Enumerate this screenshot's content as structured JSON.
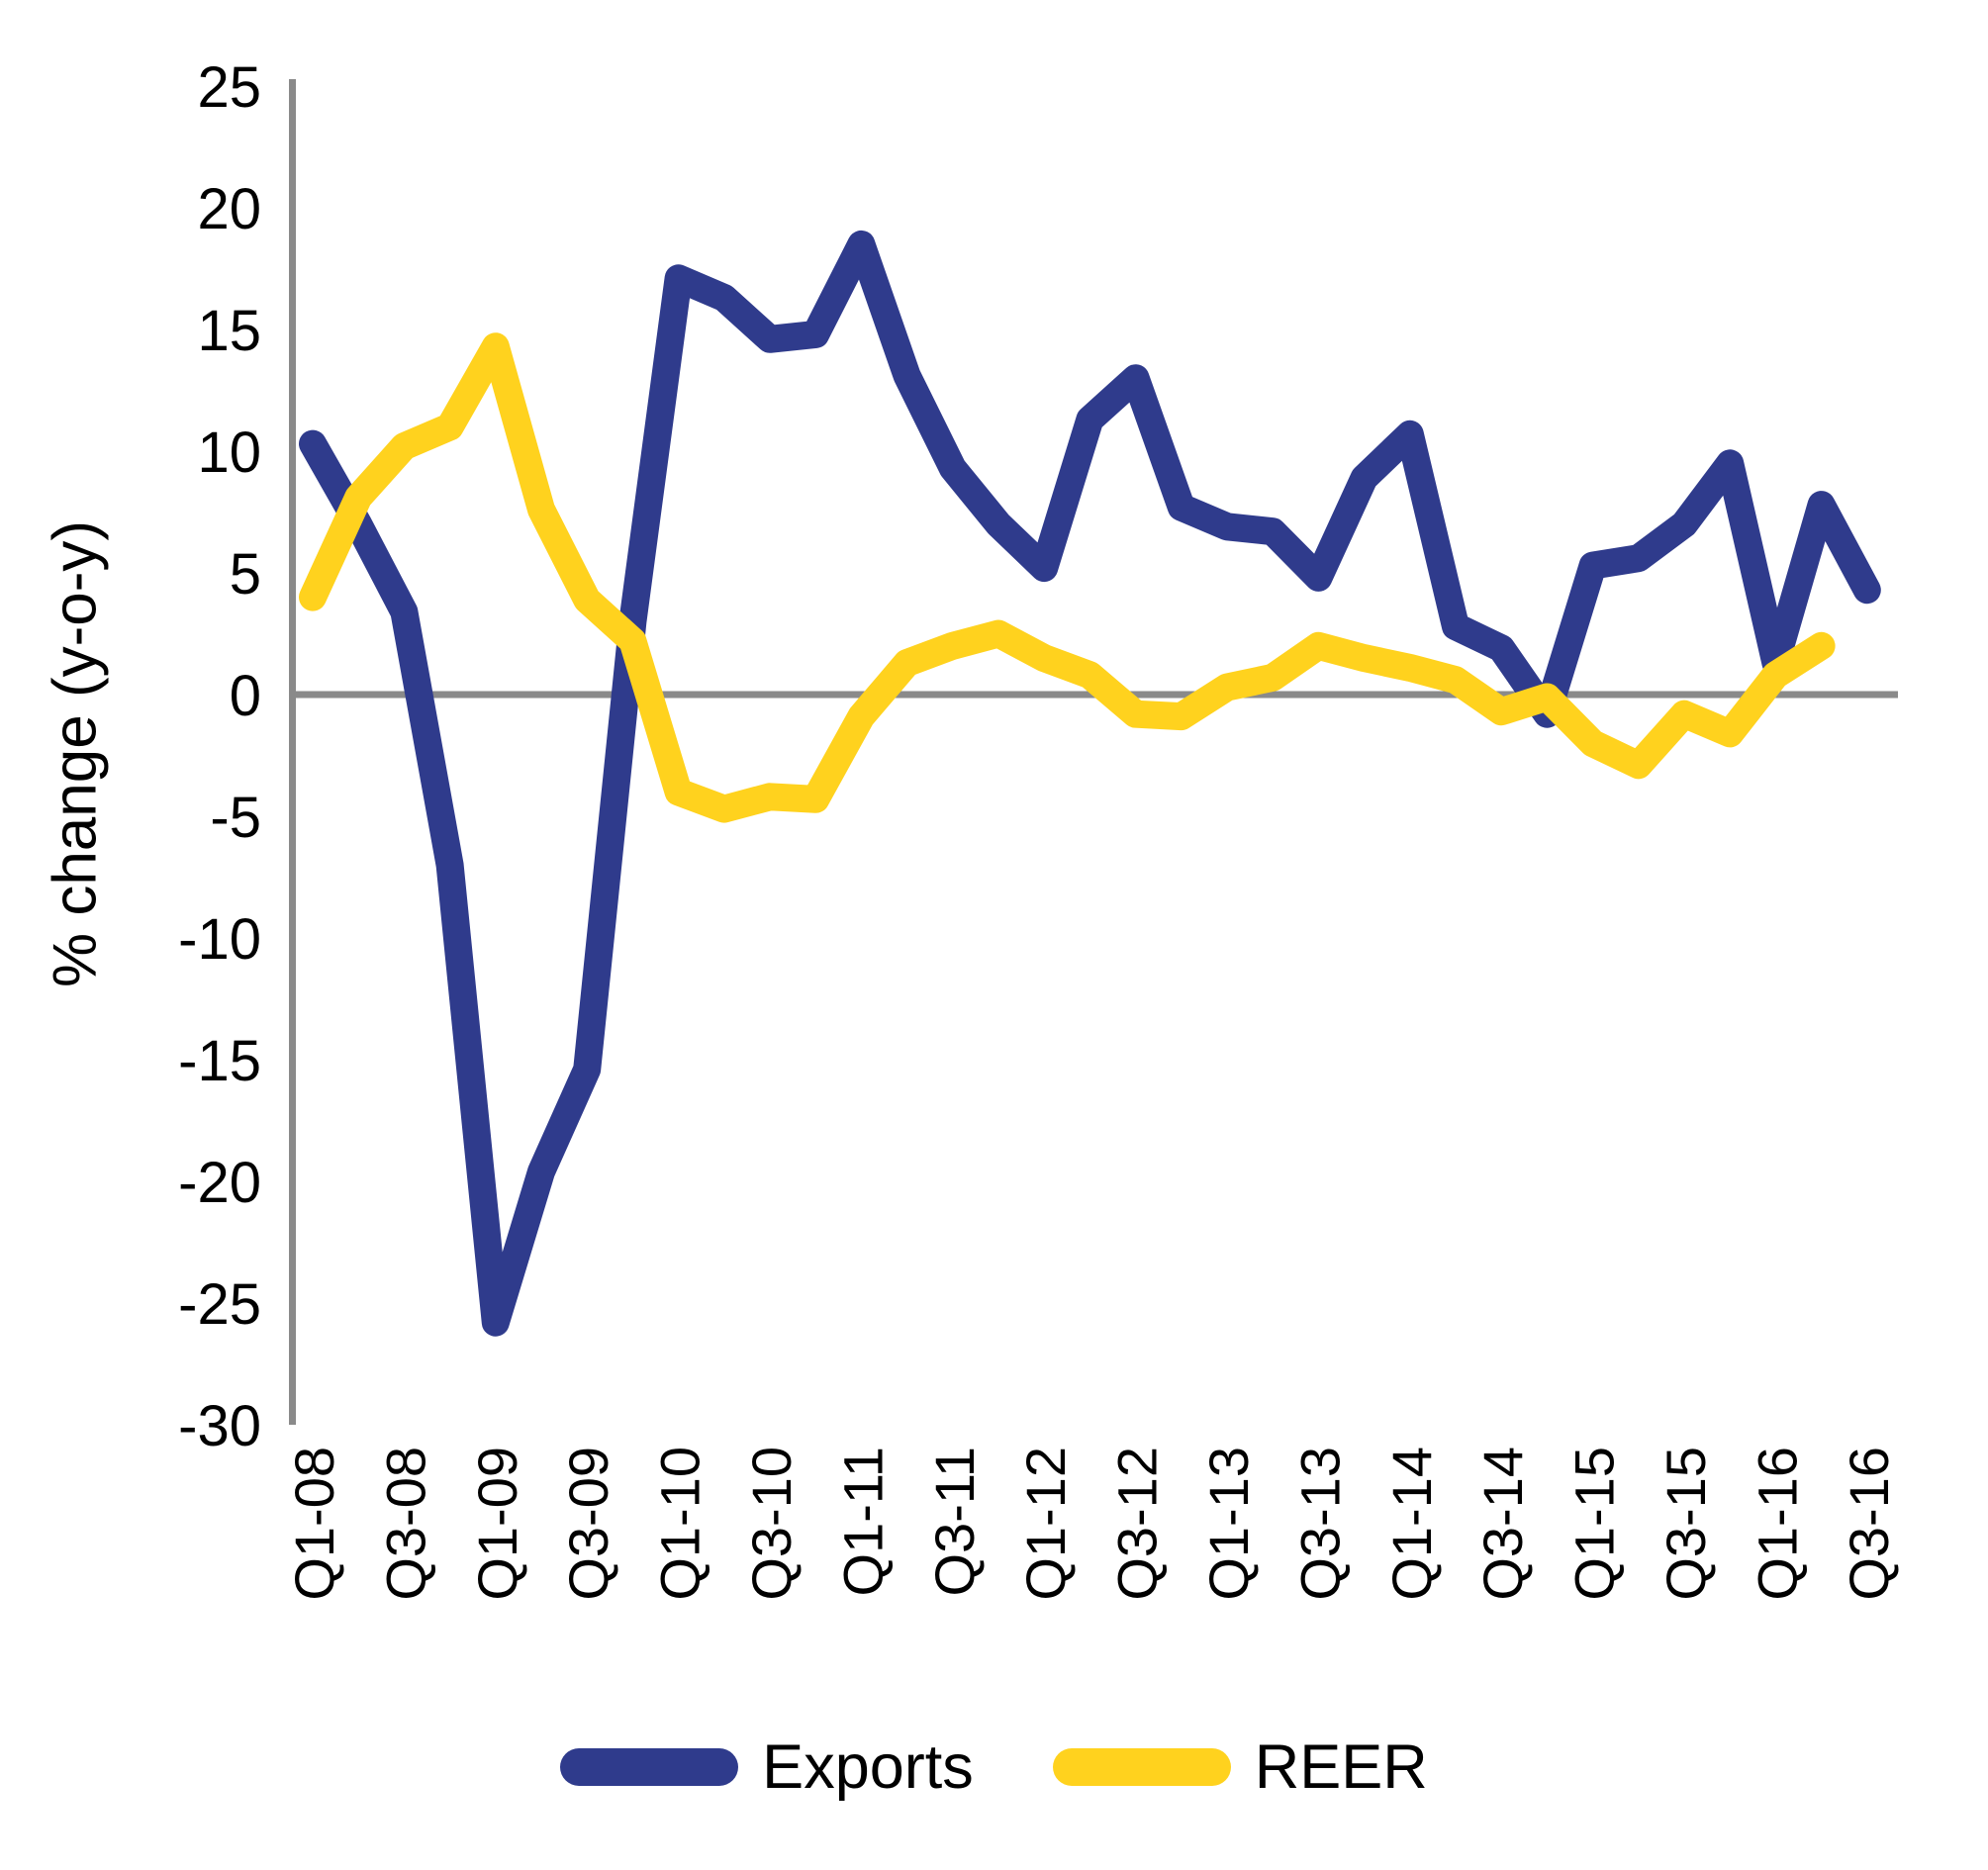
{
  "chart_data": {
    "type": "line",
    "title": "",
    "xlabel": "",
    "ylabel": "% change (y-o-y)",
    "ylim": [
      -30,
      25
    ],
    "y_ticks": [
      25,
      20,
      15,
      10,
      5,
      0,
      -5,
      -10,
      -15,
      -20,
      -25,
      -30
    ],
    "x_tick_labels": [
      "Q1-08",
      "Q3-08",
      "Q1-09",
      "Q3-09",
      "Q1-10",
      "Q3-10",
      "Q1-11",
      "Q3-11",
      "Q1-12",
      "Q3-12",
      "Q1-13",
      "Q3-13",
      "Q1-14",
      "Q3-14",
      "Q1-15",
      "Q3-15",
      "Q1-16",
      "Q3-16"
    ],
    "categories": [
      "Q1-08",
      "Q2-08",
      "Q3-08",
      "Q4-08",
      "Q1-09",
      "Q2-09",
      "Q3-09",
      "Q4-09",
      "Q1-10",
      "Q2-10",
      "Q3-10",
      "Q4-10",
      "Q1-11",
      "Q2-11",
      "Q3-11",
      "Q4-11",
      "Q1-12",
      "Q2-12",
      "Q3-12",
      "Q4-12",
      "Q1-13",
      "Q2-13",
      "Q3-13",
      "Q4-13",
      "Q1-14",
      "Q2-14",
      "Q3-14",
      "Q4-14",
      "Q1-15",
      "Q2-15",
      "Q3-15",
      "Q4-15",
      "Q1-16",
      "Q2-16",
      "Q3-16"
    ],
    "grid": false,
    "legend_position": "bottom",
    "series": [
      {
        "name": "Exports",
        "color": "#2F3B8C",
        "values": [
          10.3,
          7.0,
          3.4,
          -7.0,
          -25.8,
          -19.6,
          -15.4,
          3.0,
          17.1,
          16.3,
          14.6,
          14.8,
          18.5,
          13.1,
          9.3,
          7.0,
          5.2,
          11.3,
          13.0,
          7.7,
          6.9,
          6.7,
          4.8,
          8.9,
          10.7,
          2.8,
          1.9,
          -0.8,
          5.3,
          5.6,
          7.0,
          9.5,
          1.3,
          7.8,
          4.3
        ]
      },
      {
        "name": "REER",
        "color": "#FFD21E",
        "values": [
          4.0,
          8.1,
          10.2,
          11.0,
          14.3,
          7.6,
          3.9,
          2.2,
          -4.0,
          -4.7,
          -4.2,
          -4.3,
          -0.9,
          1.3,
          2.0,
          2.5,
          1.5,
          0.8,
          -0.8,
          -0.9,
          0.3,
          0.7,
          2.0,
          1.5,
          1.1,
          0.6,
          -0.7,
          -0.1,
          -2.0,
          -2.9,
          -0.8,
          -1.6,
          0.8,
          2.0
        ]
      }
    ],
    "axis_color": "#8A8A8A",
    "text_color": "#000000"
  }
}
